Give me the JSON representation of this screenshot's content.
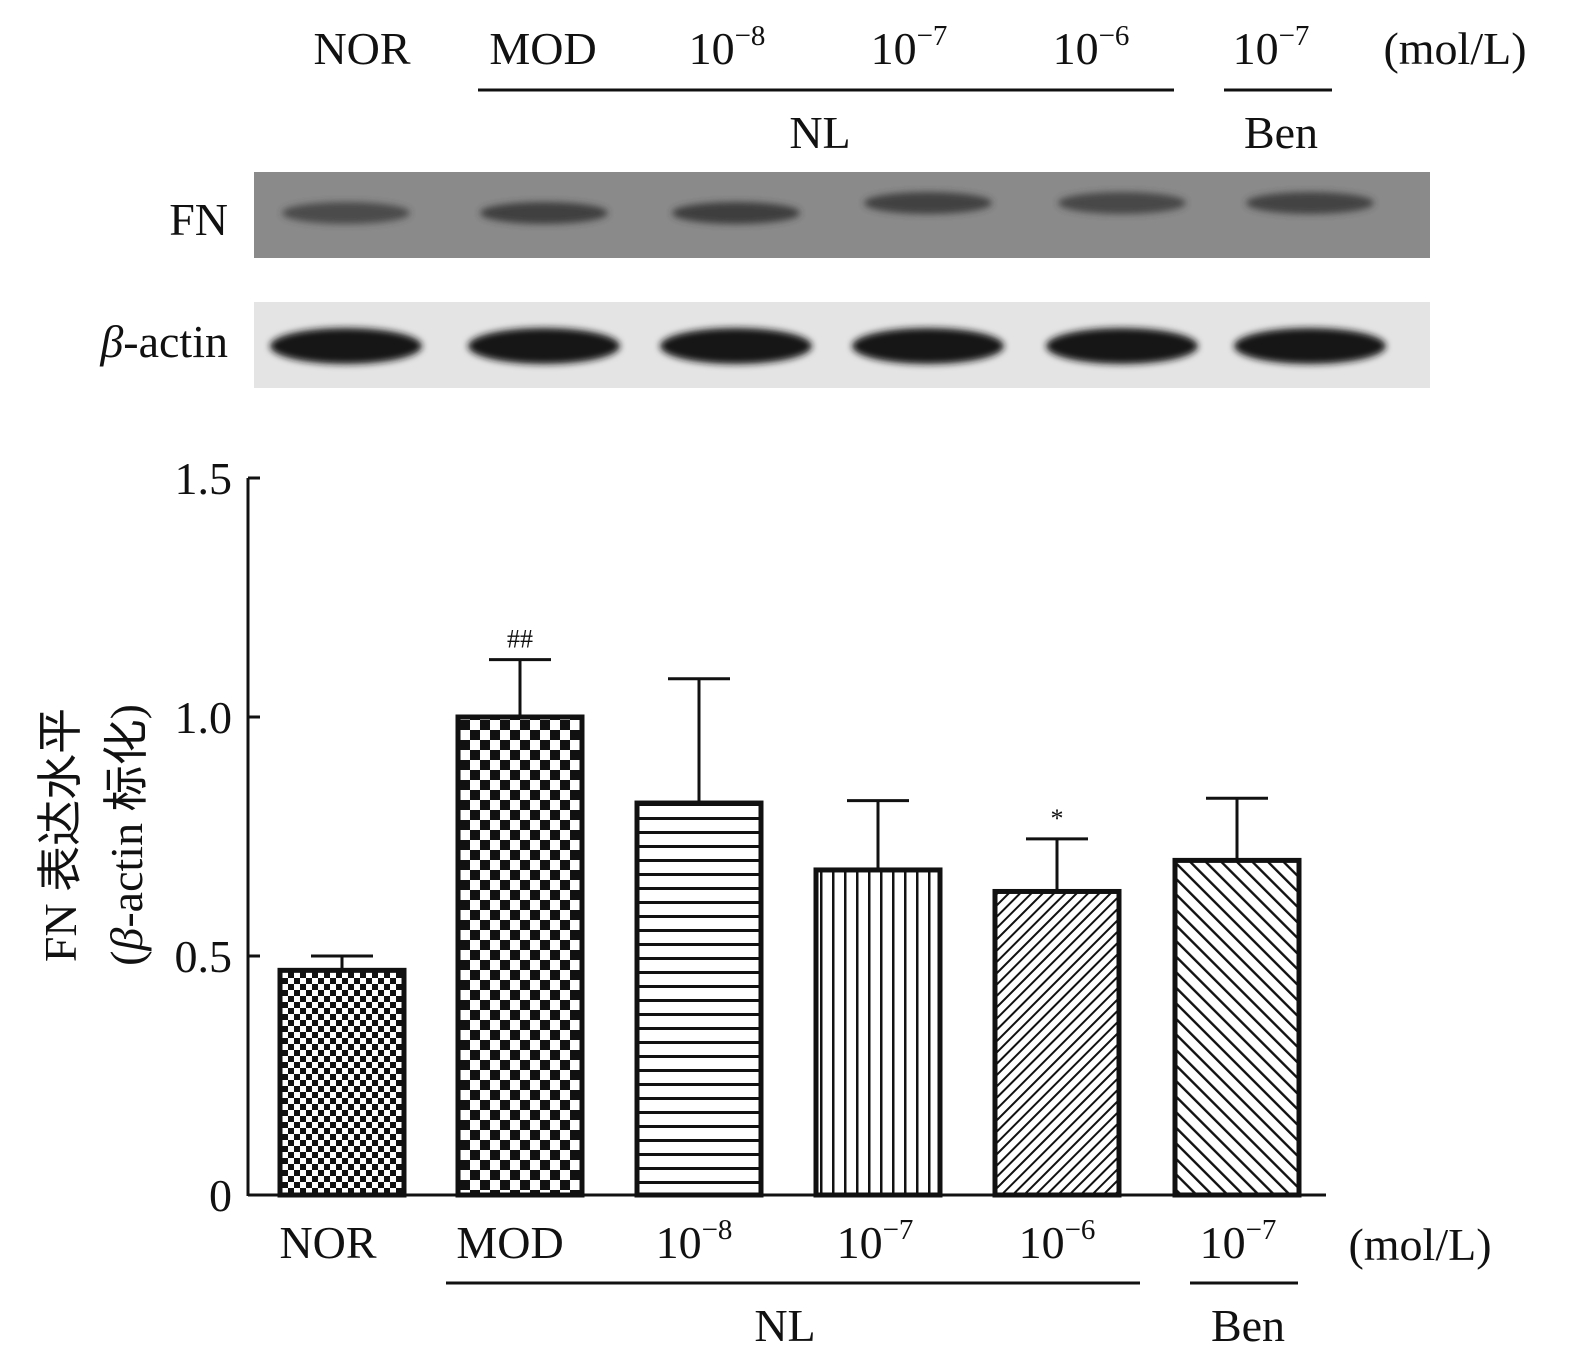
{
  "blot": {
    "lanes": [
      {
        "label": "NOR",
        "sup": ""
      },
      {
        "label": "MOD",
        "sup": ""
      },
      {
        "label": "10",
        "sup": "−8"
      },
      {
        "label": "10",
        "sup": "−7"
      },
      {
        "label": "10",
        "sup": "−6"
      },
      {
        "label": "10",
        "sup": "−7"
      }
    ],
    "unit": "(mol/L)",
    "group_labels": [
      "NL",
      "Ben"
    ],
    "rows": [
      {
        "label": "FN",
        "background": "#8a8a8a",
        "band_color": "#333333",
        "intensity": [
          0.55,
          0.75,
          0.78,
          0.72,
          0.62,
          0.7
        ]
      },
      {
        "label_italic": "β",
        "label_rest": "-actin",
        "background": "#e4e4e4",
        "band_color": "#141414",
        "intensity": [
          1,
          1,
          1,
          1,
          1,
          1
        ]
      }
    ]
  },
  "chart_data": {
    "type": "bar",
    "categories": [
      "NOR",
      "MOD",
      "10−8",
      "10−7",
      "10−6",
      "10−7"
    ],
    "tick_labels": [
      {
        "base": "NOR",
        "sup": ""
      },
      {
        "base": "MOD",
        "sup": ""
      },
      {
        "base": "10",
        "sup": "−8"
      },
      {
        "base": "10",
        "sup": "−7"
      },
      {
        "base": "10",
        "sup": "−6"
      },
      {
        "base": "10",
        "sup": "−7"
      }
    ],
    "values": [
      0.47,
      1.0,
      0.82,
      0.68,
      0.635,
      0.7
    ],
    "errors": [
      0.03,
      0.12,
      0.26,
      0.145,
      0.11,
      0.13
    ],
    "annotations": [
      "",
      "##",
      "",
      "",
      "*",
      ""
    ],
    "patterns": [
      "fine-check",
      "large-check",
      "horizontal-lines",
      "vertical-lines",
      "dense-diagonal",
      "diagonal"
    ],
    "ylim": [
      0,
      1.5
    ],
    "yticks": [
      "0",
      "0.5",
      "1.0",
      "1.5"
    ],
    "ytick_values": [
      0,
      0.5,
      1.0,
      1.5
    ],
    "ylabel_line1": "FN 表达水平",
    "ylabel_line2_open": "(",
    "ylabel_line2_italic": "β",
    "ylabel_line2_rest": "-actin 标化)",
    "xlabel": "",
    "unit": "(mol/L)",
    "groups": [
      {
        "label": "NL",
        "from": 1,
        "to": 4
      },
      {
        "label": "Ben",
        "from": 5,
        "to": 5
      }
    ],
    "grid": false
  }
}
